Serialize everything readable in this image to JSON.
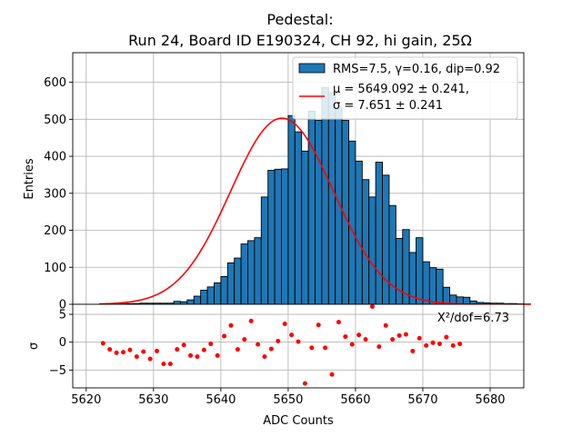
{
  "chart_data": {
    "type": "bar",
    "title_line1": "Pedestal:",
    "title_line2": "Run 24, Board ID E190324, CH 92, hi gain, 25Ω",
    "xlabel": "ADC Counts",
    "ylabel_top": "Entries",
    "ylabel_bottom": "σ",
    "xlim": [
      5618,
      5685
    ],
    "ylim_top": [
      0,
      680
    ],
    "ylim_bottom": [
      -8.2,
      6.8
    ],
    "x_ticks": [
      5620,
      5630,
      5640,
      5650,
      5660,
      5670,
      5680
    ],
    "y_ticks_top": [
      0,
      100,
      200,
      300,
      400,
      500,
      600
    ],
    "y_ticks_bottom": [
      -5,
      0,
      5
    ],
    "grid": true,
    "colors": {
      "bar": "#1f77b4",
      "fit": "#ff0000",
      "residual": "#ff0000"
    },
    "legend": {
      "placement": "top-right",
      "hist_label": "RMS=7.5, γ=0.16, dip=0.92",
      "fit_label_line1": "μ = 5649.092 ± 0.241,",
      "fit_label_line2": "σ = 7.651 ± 0.241"
    },
    "chi2_label": "X²/dof=6.73",
    "fit": {
      "mu": 5649.092,
      "sigma": 7.651,
      "amplitude": 503
    },
    "histogram": {
      "bin_start": 5622,
      "bin_width": 1,
      "counts": [
        1,
        1,
        1,
        1,
        2,
        2,
        3,
        3,
        3,
        3,
        3,
        8,
        7,
        12,
        22,
        38,
        47,
        58,
        75,
        112,
        125,
        163,
        172,
        180,
        290,
        362,
        365,
        366,
        510,
        466,
        414,
        522,
        497,
        586,
        572,
        531,
        497,
        441,
        387,
        337,
        290,
        384,
        349,
        267,
        178,
        202,
        140,
        180,
        115,
        99,
        95,
        46,
        25,
        20,
        19,
        9,
        5,
        4,
        3,
        3,
        2,
        2,
        1,
        1
      ]
    },
    "residuals": {
      "x": [
        5622.5,
        5623.5,
        5624.5,
        5625.5,
        5626.5,
        5627.5,
        5628.5,
        5629.5,
        5630.5,
        5631.5,
        5632.5,
        5633.5,
        5634.5,
        5635.5,
        5636.5,
        5637.5,
        5638.5,
        5639.5,
        5640.5,
        5641.5,
        5642.5,
        5643.5,
        5644.5,
        5645.5,
        5646.5,
        5647.5,
        5648.5,
        5649.5,
        5650.5,
        5651.5,
        5652.5,
        5653.5,
        5654.5,
        5655.5,
        5656.5,
        5657.5,
        5658.5,
        5659.5,
        5660.5,
        5661.5,
        5662.5,
        5663.5,
        5664.5,
        5665.5,
        5666.5,
        5667.5,
        5668.5,
        5669.5,
        5670.5,
        5671.5,
        5672.5,
        5673.5,
        5674.5,
        5675.5
      ],
      "y": [
        -0.2,
        -1.3,
        -1.9,
        -1.8,
        -1.4,
        -2.6,
        -1.7,
        -3.0,
        -1.6,
        -3.9,
        -3.9,
        -1.3,
        -0.5,
        -2.4,
        -2.6,
        -1.4,
        -0.3,
        -2.4,
        1.1,
        3.0,
        -1.3,
        0.5,
        3.8,
        -0.4,
        -2.6,
        -1.2,
        0.2,
        3.3,
        1.3,
        0.1,
        -7.4,
        -1.0,
        3.1,
        -1.0,
        -5.8,
        3.6,
        1.0,
        -0.4,
        1.3,
        0.5,
        6.4,
        -0.8,
        3.0,
        0.5,
        1.2,
        1.4,
        -1.6,
        0.7,
        -0.6,
        -0.1,
        -0.3,
        0.9,
        -0.6,
        -0.3
      ]
    }
  }
}
